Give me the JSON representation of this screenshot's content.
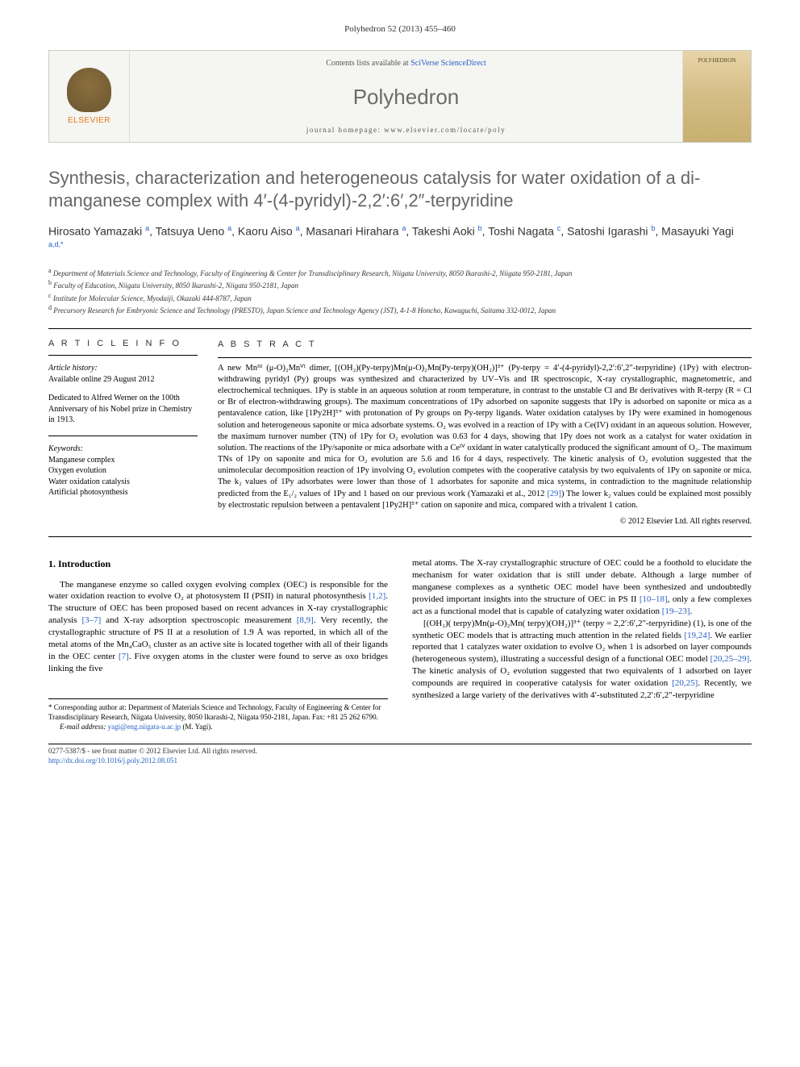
{
  "header": {
    "citation": "Polyhedron 52 (2013) 455–460"
  },
  "journalBox": {
    "publisher_name": "ELSEVIER",
    "contents_prefix": "Contents lists available at ",
    "contents_link": "SciVerse ScienceDirect",
    "journal_name": "Polyhedron",
    "homepage_text": "journal homepage: www.elsevier.com/locate/poly",
    "thumb_label": "POLYHEDRON"
  },
  "article": {
    "title": "Synthesis, characterization and heterogeneous catalysis for water oxidation of a di-manganese complex with 4′-(4-pyridyl)-2,2′:6′,2″-terpyridine",
    "authors_html": "Hirosato Yamazaki <sup>a</sup>, Tatsuya Ueno <sup>a</sup>, Kaoru Aiso <sup>a</sup>, Masanari Hirahara <sup>a</sup>, Takeshi Aoki <sup>b</sup>, Toshi Nagata <sup>c</sup>, Satoshi Igarashi <sup>b</sup>, Masayuki Yagi <sup>a,d,*</sup>",
    "affiliations": {
      "a": "Department of Materials Science and Technology, Faculty of Engineering & Center for Transdisciplinary Research, Niigata University, 8050 Ikarashi-2, Niigata 950-2181, Japan",
      "b": "Faculty of Education, Niigata University, 8050 Ikarashi-2, Niigata 950-2181, Japan",
      "c": "Institute for Molecular Science, Myodaiji, Okazaki 444-8787, Japan",
      "d": "Precursory Research for Embryonic Science and Technology (PRESTO), Japan Science and Technology Agency (JST), 4-1-8 Honcho, Kawaguchi, Saitama 332-0012, Japan"
    }
  },
  "info": {
    "heading": "A R T I C L E   I N F O",
    "history_label": "Article history:",
    "history_text": "Available online 29 August 2012",
    "dedication": "Dedicated to Alfred Werner on the 100th Anniversary of his Nobel prize in Chemistry in 1913.",
    "keywords_label": "Keywords:",
    "keywords": [
      "Manganese complex",
      "Oxygen evolution",
      "Water oxidation catalysis",
      "Artificial photosynthesis"
    ]
  },
  "abstract": {
    "heading": "A B S T R A C T",
    "text": "A new Mnᴵᴵᴵ (μ-O)₂Mnⱽᴵ dimer, [(OH₂)(Py-terpy)Mn(μ-O)₂Mn(Py-terpy)(OH₂)]³⁺ (Py-terpy = 4′-(4-pyridyl)-2,2′:6′,2″-terpyridine) (1Py) with electron-withdrawing pyridyl (Py) groups was synthesized and characterized by UV–Vis and IR spectroscopic, X-ray crystallographic, magnetometric, and electrochemical techniques. 1Py is stable in an aqueous solution at room temperature, in contrast to the unstable Cl and Br derivatives with R-terpy (R = Cl or Br of electron-withdrawing groups). The maximum concentrations of 1Py adsorbed on saponite suggests that 1Py is adsorbed on saponite or mica as a pentavalence cation, like [1Py2H]⁵⁺ with protonation of Py groups on Py-terpy ligands. Water oxidation catalyses by 1Py were examined in homogenous solution and heterogeneous saponite or mica adsorbate systems. O₂ was evolved in a reaction of 1Py with a Ce(IV) oxidant in an aqueous solution. However, the maximum turnover number (TN) of 1Py for O₂ evolution was 0.63 for 4 days, showing that 1Py does not work as a catalyst for water oxidation in solution. The reactions of the 1Py/saponite or mica adsorbate with a Ceᴵⱽ oxidant in water catalytically produced the significant amount of O₂. The maximum TNs of 1Py on saponite and mica for O₂ evolution are 5.6 and 16 for 4 days, respectively. The kinetic analysis of O₂ evolution suggested that the unimolecular decomposition reaction of 1Py involving O₂ evolution competes with the cooperative catalysis by two equivalents of 1Py on saponite or mica. The k₂ values of 1Py adsorbates were lower than those of 1 adsorbates for saponite and mica systems, in contradiction to the magnitude relationship predicted from the E₁/₂ values of 1Py and 1 based on our previous work (Yamazaki et al., 2012 ",
    "ref1": "[29]",
    "text2": ")  The lower k₂ values could be explained most possibly by electrostatic repulsion between a pentavalent [1Py2H]⁵⁺ cation on saponite and mica, compared with a trivalent 1 cation.",
    "copyright": "© 2012 Elsevier Ltd. All rights reserved."
  },
  "body": {
    "section_number": "1.",
    "section_title": "Introduction",
    "col1_para1_a": "The manganese enzyme so called oxygen evolving complex (OEC) is responsible for the water oxidation reaction to evolve O₂ at photosystem II (PSII) in natural photosynthesis ",
    "ref_12": "[1,2]",
    "col1_para1_b": ". The structure of OEC has been proposed based on recent advances in X-ray crystallographic analysis ",
    "ref_37": "[3–7]",
    "col1_para1_c": " and X-ray adsorption spectroscopic measurement ",
    "ref_89": "[8,9]",
    "col1_para1_d": ". Very recently, the crystallographic structure of PS II at a resolution of 1.9 Å was reported, in which all of the metal atoms of the Mn₄CaO₅ cluster as an active site is located together with all of their ligands in the OEC center ",
    "ref_7": "[7]",
    "col1_para1_e": ". Five oxygen atoms in the cluster were found to serve as oxo bridges linking the five",
    "col2_para1_a": "metal atoms. The X-ray crystallographic structure of OEC could be a foothold to elucidate the mechanism for water oxidation that is still under debate. Although a large number of manganese complexes as a synthetic OEC model have been synthesized and undoubtedly provided important insights into the structure of OEC in PS II ",
    "ref_1018": "[10–18]",
    "col2_para1_b": ", only a few complexes act as a functional model that is capable of catalyzing water oxidation ",
    "ref_1923": "[19–23]",
    "col2_para1_c": ".",
    "col2_para2_a": "[(OH₂)( terpy)Mn(μ-O)₂Mn( terpy)(OH₂)]³⁺   (terpy = 2,2′:6′,2″-terpyridine) (1), is one of the synthetic OEC models that is attracting much attention in the related fields ",
    "ref_1924": "[19,24]",
    "col2_para2_b": ". We earlier reported that 1 catalyzes water oxidation to evolve O₂ when 1 is adsorbed on layer compounds (heterogeneous system), illustrating a successful design of a functional OEC model ",
    "ref_202529": "[20,25–29]",
    "col2_para2_c": ". The kinetic analysis of O₂ evolution suggested that two equivalents of 1 adsorbed on layer compounds are required in cooperative catalysis for water oxidation ",
    "ref_2025": "[20,25]",
    "col2_para2_d": ". Recently, we synthesized a large variety of the derivatives with 4′-substituted 2,2′:6′,2″-terpyridine"
  },
  "footnote": {
    "corr_label": "* Corresponding author at:",
    "corr_text": " Department of Materials Science and Technology, Faculty of Engineering & Center for Transdisciplinary Research, Niigata University, 8050 Ikarashi-2, Niigata 950-2181, Japan. Fax: +81 25 262 6790.",
    "email_label": "E-mail address: ",
    "email": "yagi@eng.niigata-u.ac.jp",
    "email_suffix": " (M. Yagi)."
  },
  "footer": {
    "issn_line": "0277-5387/$ - see front matter © 2012 Elsevier Ltd. All rights reserved.",
    "doi": "http://dx.doi.org/10.1016/j.poly.2012.08.051"
  }
}
